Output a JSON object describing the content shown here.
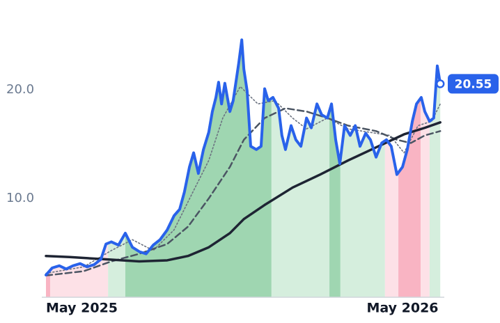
{
  "chart_data": {
    "type": "line",
    "xlim": [
      0,
      13.3
    ],
    "ylim": [
      0.9,
      27
    ],
    "xticks": [
      {
        "value": 0,
        "label": "May 2025"
      },
      {
        "value": 12,
        "label": "May 2026"
      }
    ],
    "yticks": [
      {
        "value": 10,
        "label": "10.0"
      },
      {
        "value": 20,
        "label": "20.0"
      }
    ],
    "bands": [
      {
        "start": 0,
        "end": 0.14,
        "color": "#f9b4c3"
      },
      {
        "start": 0.14,
        "end": 2.09,
        "color": "#fde1e7"
      },
      {
        "start": 2.09,
        "end": 2.67,
        "color": "#d5eedd"
      },
      {
        "start": 2.67,
        "end": 7.59,
        "color": "#9fd6b1"
      },
      {
        "start": 7.59,
        "end": 9.54,
        "color": "#d5eedd"
      },
      {
        "start": 9.54,
        "end": 9.91,
        "color": "#9fd6b1"
      },
      {
        "start": 9.91,
        "end": 11.41,
        "color": "#d5eedd"
      },
      {
        "start": 11.41,
        "end": 11.86,
        "color": "#fde1e7"
      },
      {
        "start": 11.86,
        "end": 12.61,
        "color": "#f9b4c3"
      },
      {
        "start": 12.61,
        "end": 12.91,
        "color": "#fde1e7"
      },
      {
        "start": 12.91,
        "end": 13.3,
        "color": "#d5eedd"
      }
    ],
    "series": [
      {
        "color": "#2962ea",
        "width": 4,
        "line_style": "solid",
        "last_label": true,
        "x": [
          0,
          0.21,
          0.45,
          0.68,
          0.91,
          1.15,
          1.38,
          1.62,
          1.85,
          2.02,
          2.2,
          2.44,
          2.67,
          2.91,
          3.14,
          3.37,
          3.61,
          3.84,
          4.08,
          4.31,
          4.5,
          4.66,
          4.83,
          4.97,
          5.13,
          5.3,
          5.48,
          5.6,
          5.72,
          5.81,
          5.91,
          6.02,
          6.19,
          6.3,
          6.42,
          6.49,
          6.59,
          6.66,
          6.77,
          6.89,
          7.08,
          7.24,
          7.36,
          7.48,
          7.64,
          7.83,
          7.94,
          8.06,
          8.25,
          8.41,
          8.58,
          8.77,
          8.93,
          9.12,
          9.28,
          9.47,
          9.61,
          9.75,
          9.89,
          10.05,
          10.24,
          10.41,
          10.57,
          10.76,
          10.92,
          11.11,
          11.3,
          11.46,
          11.62,
          11.81,
          12,
          12.16,
          12.33,
          12.47,
          12.63,
          12.75,
          12.91,
          13.05,
          13.17,
          13.27
        ],
        "values": [
          2.95,
          3.6,
          3.8,
          3.5,
          3.8,
          4.0,
          3.7,
          3.9,
          4.4,
          5.8,
          6.0,
          5.7,
          6.8,
          5.5,
          5.1,
          4.9,
          5.7,
          6.2,
          7.1,
          8.4,
          9.0,
          10.6,
          12.9,
          14.2,
          12.3,
          14.5,
          16.1,
          18.0,
          19.3,
          20.7,
          18.7,
          20.6,
          18.0,
          19.0,
          21.2,
          22.5,
          24.6,
          21.9,
          19.9,
          14.8,
          14.5,
          14.8,
          20.1,
          19.0,
          19.3,
          18.3,
          15.8,
          14.5,
          16.7,
          15.4,
          14.8,
          17.4,
          16.5,
          18.7,
          17.7,
          17.4,
          18.7,
          15.4,
          13.2,
          16.7,
          15.8,
          16.7,
          14.8,
          16.0,
          15.4,
          13.8,
          15.1,
          15.4,
          14.8,
          12.2,
          12.9,
          14.5,
          17.1,
          18.7,
          19.3,
          18.0,
          17.1,
          17.4,
          22.2,
          20.55
        ]
      },
      {
        "color": "#1e2433",
        "width": 3.5,
        "line_style": "solid",
        "x": [
          0,
          0.8,
          1.97,
          3.14,
          4.08,
          4.78,
          5.48,
          6.19,
          6.66,
          7.36,
          8.3,
          9.23,
          10.17,
          11.11,
          12.05,
          12.75,
          13.27
        ],
        "values": [
          4.7,
          4.6,
          4.4,
          4.2,
          4.3,
          4.7,
          5.5,
          6.8,
          8.1,
          9.4,
          11.0,
          12.2,
          13.5,
          14.7,
          15.9,
          16.5,
          17.0
        ]
      },
      {
        "color": "#4b5563",
        "width": 2.5,
        "line_style": "dashed",
        "x": [
          0,
          1.27,
          2.2,
          3.14,
          4.08,
          4.78,
          5.48,
          6.19,
          6.66,
          7.36,
          8.06,
          8.77,
          9.47,
          10.17,
          11.11,
          11.81,
          12.28,
          12.75,
          13.27
        ],
        "values": [
          2.9,
          3.3,
          4.2,
          4.9,
          5.8,
          7.4,
          10.0,
          12.9,
          15.4,
          17.4,
          18.3,
          18.0,
          17.4,
          16.7,
          16.2,
          15.4,
          15.1,
          15.8,
          16.2
        ]
      },
      {
        "color": "#6b7280",
        "width": 1.6,
        "line_style": "dotted",
        "x": [
          0,
          1.27,
          2.2,
          2.91,
          3.61,
          4.31,
          5.02,
          5.48,
          5.95,
          6.54,
          7.13,
          7.71,
          8.3,
          8.77,
          9.47,
          10.17,
          10.87,
          11.58,
          12.05,
          12.52,
          12.98,
          13.27
        ],
        "values": [
          3.1,
          3.7,
          5.2,
          6.2,
          5.2,
          7.1,
          11.0,
          13.5,
          17.4,
          20.3,
          18.7,
          19.0,
          17.4,
          16.4,
          17.4,
          16.4,
          16.1,
          15.8,
          14.2,
          16.7,
          17.1,
          18.7
        ]
      }
    ]
  }
}
